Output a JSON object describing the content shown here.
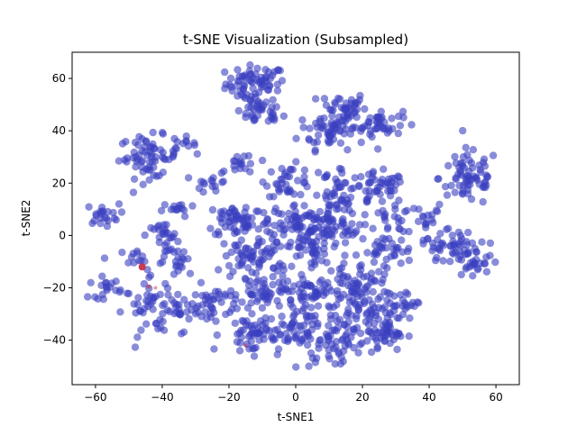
{
  "chart_data": {
    "type": "scatter",
    "title": "t-SNE Visualization (Subsampled)",
    "xlabel": "t-SNE1",
    "ylabel": "t-SNE2",
    "xlim": [
      -67,
      67
    ],
    "ylim": [
      -57,
      70
    ],
    "xticks": [
      -60,
      -40,
      -20,
      0,
      20,
      40,
      60
    ],
    "yticks": [
      -40,
      -20,
      0,
      20,
      40,
      60
    ],
    "xtick_labels": [
      "−60",
      "−40",
      "−20",
      "0",
      "20",
      "40",
      "60"
    ],
    "ytick_labels": [
      "−40",
      "−20",
      "0",
      "20",
      "40",
      "60"
    ],
    "grid": false,
    "colors": {
      "main": "#3a3fbf",
      "accent": "#c8273c"
    },
    "marker_alpha": 0.6,
    "clusters": [
      {
        "x": -12,
        "y": 58,
        "sx": 4.5,
        "sy": 3.5,
        "n": 70
      },
      {
        "x": -11,
        "y": 47,
        "sx": 3.5,
        "sy": 2.5,
        "n": 35
      },
      {
        "x": 14,
        "y": 49,
        "sx": 3.5,
        "sy": 3,
        "n": 40
      },
      {
        "x": 11,
        "y": 40,
        "sx": 5,
        "sy": 3.5,
        "n": 60
      },
      {
        "x": 25,
        "y": 43,
        "sx": 3.5,
        "sy": 2.5,
        "n": 40
      },
      {
        "x": -44,
        "y": 30,
        "sx": 4.5,
        "sy": 4,
        "n": 65
      },
      {
        "x": -34,
        "y": 35,
        "sx": 2,
        "sy": 1.5,
        "n": 12
      },
      {
        "x": 52,
        "y": 22,
        "sx": 4.5,
        "sy": 5.5,
        "n": 70
      },
      {
        "x": 25,
        "y": 18,
        "sx": 4,
        "sy": 3,
        "n": 45
      },
      {
        "x": -16,
        "y": 27,
        "sx": 2.5,
        "sy": 2.5,
        "n": 18
      },
      {
        "x": -25,
        "y": 20,
        "sx": 2.5,
        "sy": 2,
        "n": 14
      },
      {
        "x": -2,
        "y": 21,
        "sx": 3.5,
        "sy": 3,
        "n": 35
      },
      {
        "x": 12,
        "y": 20,
        "sx": 4,
        "sy": 3.5,
        "n": 30
      },
      {
        "x": 12,
        "y": 11,
        "sx": 3,
        "sy": 2.5,
        "n": 20
      },
      {
        "x": -58,
        "y": 8,
        "sx": 2.5,
        "sy": 2,
        "n": 22
      },
      {
        "x": -40,
        "y": 0,
        "sx": 2.5,
        "sy": 2.5,
        "n": 22
      },
      {
        "x": -35,
        "y": 10,
        "sx": 2.5,
        "sy": 1.5,
        "n": 14
      },
      {
        "x": -17,
        "y": 6,
        "sx": 5,
        "sy": 3.5,
        "n": 60
      },
      {
        "x": 0,
        "y": 6,
        "sx": 4.5,
        "sy": 3,
        "n": 55
      },
      {
        "x": 9,
        "y": 3,
        "sx": 5,
        "sy": 3,
        "n": 50
      },
      {
        "x": 28,
        "y": 7,
        "sx": 4,
        "sy": 3,
        "n": 25
      },
      {
        "x": 46,
        "y": -3,
        "sx": 4,
        "sy": 3,
        "n": 35
      },
      {
        "x": 52,
        "y": -10,
        "sx": 4.5,
        "sy": 3.5,
        "n": 40
      },
      {
        "x": 40,
        "y": 5,
        "sx": 2.5,
        "sy": 2.5,
        "n": 14
      },
      {
        "x": -12,
        "y": -8,
        "sx": 5,
        "sy": 4,
        "n": 65
      },
      {
        "x": 4,
        "y": -4,
        "sx": 5,
        "sy": 3.5,
        "n": 55
      },
      {
        "x": 27,
        "y": -6,
        "sx": 4,
        "sy": 3,
        "n": 35
      },
      {
        "x": -35,
        "y": -10,
        "sx": 3,
        "sy": 3,
        "n": 25
      },
      {
        "x": -46,
        "y": -9,
        "sx": 3,
        "sy": 2,
        "n": 14
      },
      {
        "x": -57,
        "y": -20,
        "sx": 2.5,
        "sy": 2,
        "n": 20
      },
      {
        "x": -43,
        "y": -28,
        "sx": 4,
        "sy": 5,
        "n": 45
      },
      {
        "x": -34,
        "y": -28,
        "sx": 2.5,
        "sy": 4,
        "n": 20
      },
      {
        "x": -24,
        "y": -27,
        "sx": 4,
        "sy": 4,
        "n": 45
      },
      {
        "x": -9,
        "y": -22,
        "sx": 4.5,
        "sy": 4,
        "n": 50
      },
      {
        "x": 5,
        "y": -22,
        "sx": 5,
        "sy": 4,
        "n": 55
      },
      {
        "x": 18,
        "y": -26,
        "sx": 5,
        "sy": 5,
        "n": 60
      },
      {
        "x": 28,
        "y": -30,
        "sx": 4,
        "sy": 5,
        "n": 45
      },
      {
        "x": 20,
        "y": -16,
        "sx": 3.5,
        "sy": 3,
        "n": 30
      },
      {
        "x": -13,
        "y": -38,
        "sx": 4.5,
        "sy": 3.5,
        "n": 55
      },
      {
        "x": 0,
        "y": -36,
        "sx": 3.5,
        "sy": 4,
        "n": 45
      },
      {
        "x": 12,
        "y": -40,
        "sx": 4.5,
        "sy": 3.5,
        "n": 45
      },
      {
        "x": 25,
        "y": -37,
        "sx": 4,
        "sy": 3.5,
        "n": 35
      },
      {
        "x": 10,
        "y": -48,
        "sx": 3,
        "sy": 1.5,
        "n": 12
      },
      {
        "x": 33,
        "y": -25,
        "sx": 2,
        "sy": 2,
        "n": 8
      }
    ],
    "highlight_points": [
      {
        "x": -46,
        "y": -12,
        "r": 4,
        "alpha": 0.9
      },
      {
        "x": -44,
        "y": -19.5,
        "r": 2.5,
        "alpha": 0.5
      },
      {
        "x": -42,
        "y": -20,
        "r": 2,
        "alpha": 0.45
      },
      {
        "x": -15,
        "y": -42,
        "r": 2,
        "alpha": 0.5
      }
    ]
  }
}
